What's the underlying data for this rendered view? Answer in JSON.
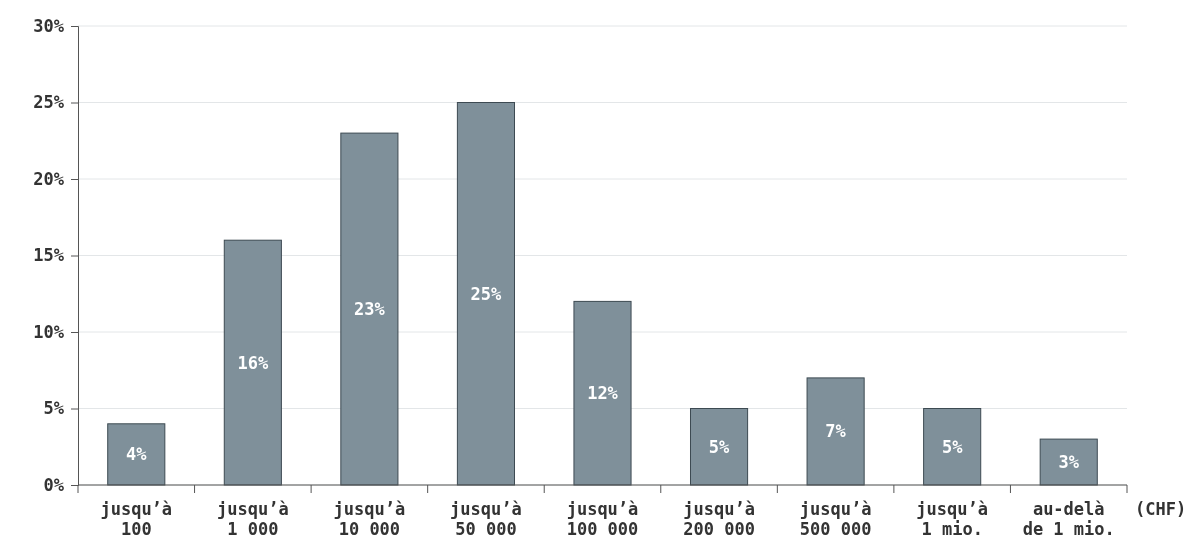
{
  "chart_data": {
    "type": "bar",
    "categories": [
      "jusqu’à 100",
      "jusqu’à 1 000",
      "jusqu’à 10 000",
      "jusqu’à 50 000",
      "jusqu’à 100 000",
      "jusqu’à 200 000",
      "jusqu’à 500 000",
      "jusqu’à 1 mio.",
      "au-delà de 1 mio."
    ],
    "values": [
      4,
      16,
      23,
      25,
      12,
      5,
      7,
      5,
      3
    ],
    "value_labels": [
      "4%",
      "16%",
      "23%",
      "25%",
      "12%",
      "5%",
      "7%",
      "5%",
      "3%"
    ],
    "color": "#7f909a",
    "xlabel": "(CHF)",
    "ylim": [
      0,
      30
    ],
    "yticks": [
      {
        "value": 0,
        "label": "0%"
      },
      {
        "value": 5,
        "label": "5%"
      },
      {
        "value": 10,
        "label": "10%"
      },
      {
        "value": 15,
        "label": "15%"
      },
      {
        "value": 20,
        "label": "20%"
      },
      {
        "value": 25,
        "label": "25%"
      },
      {
        "value": 30,
        "label": "30%"
      }
    ],
    "grid": "y"
  }
}
